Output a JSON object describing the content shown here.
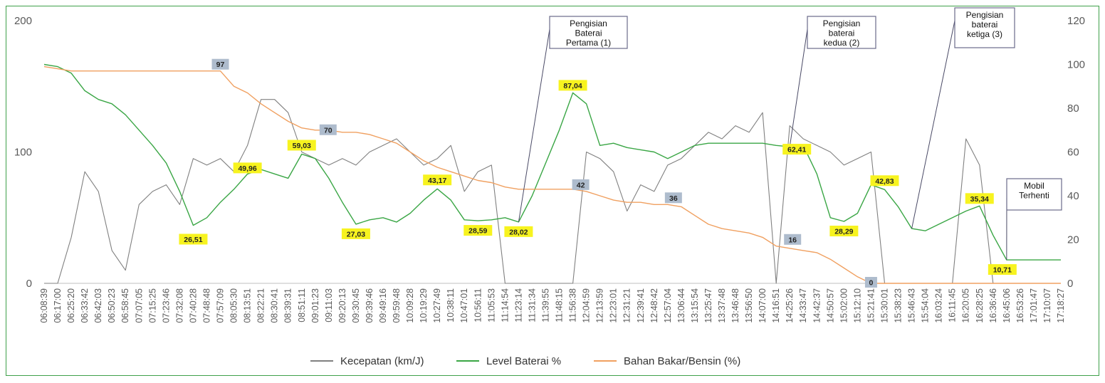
{
  "chart_data": {
    "type": "line",
    "x": [
      "06:08:39",
      "06:17:00",
      "06:25:20",
      "06:33:42",
      "06:42:03",
      "06:50:23",
      "06:58:45",
      "07:07:05",
      "07:15:25",
      "07:23:46",
      "07:32:08",
      "07:40:28",
      "07:48:48",
      "07:57:09",
      "08:05:30",
      "08:13:51",
      "08:22:21",
      "08:30:41",
      "08:39:31",
      "08:51:11",
      "09:01:23",
      "09:11:03",
      "09:20:13",
      "09:30:45",
      "09:39:46",
      "09:49:16",
      "09:59:48",
      "10:09:28",
      "10:19:29",
      "10:27:49",
      "10:38:11",
      "10:47:01",
      "10:56:11",
      "11:05:53",
      "11:14:54",
      "11:23:14",
      "11:31:34",
      "11:39:55",
      "11:48:15",
      "11:56:38",
      "12:04:59",
      "12:13:59",
      "12:23:01",
      "12:31:21",
      "12:39:41",
      "12:48:42",
      "12:57:04",
      "13:06:44",
      "13:15:54",
      "13:25:47",
      "13:37:48",
      "13:46:48",
      "13:56:50",
      "14:07:00",
      "14:16:51",
      "14:25:26",
      "14:33:47",
      "14:42:37",
      "14:50:57",
      "15:02:00",
      "15:12:10",
      "15:21:41",
      "15:30:01",
      "15:38:23",
      "15:46:43",
      "15:54:04",
      "16:03:24",
      "16:11:45",
      "16:20:05",
      "16:28:25",
      "16:36:46",
      "16:45:06",
      "16:53:26",
      "17:01:47",
      "17:10:07",
      "17:18:27"
    ],
    "y_left": {
      "min": 0,
      "max": 200,
      "ticks": [
        "0",
        "100",
        "200"
      ]
    },
    "y_right": {
      "min": 0,
      "max": 120,
      "ticks": [
        "0",
        "20",
        "40",
        "60",
        "80",
        "100",
        "120"
      ]
    },
    "grid": false,
    "legend_position": "bottom",
    "series": [
      {
        "name": "Kecepatan (km/J)",
        "axis": "left",
        "color": "#808080",
        "values": [
          0,
          0,
          35,
          85,
          70,
          25,
          10,
          60,
          70,
          75,
          60,
          95,
          90,
          95,
          85,
          105,
          140,
          140,
          130,
          100,
          95,
          90,
          95,
          90,
          100,
          105,
          110,
          100,
          90,
          95,
          105,
          70,
          85,
          90,
          0,
          0,
          0,
          0,
          0,
          0,
          100,
          95,
          85,
          55,
          75,
          70,
          90,
          95,
          105,
          115,
          110,
          120,
          115,
          130,
          0,
          120,
          110,
          105,
          100,
          90,
          95,
          100,
          0,
          0,
          0,
          0,
          0,
          0,
          110,
          90,
          0,
          0,
          0,
          0,
          0,
          0
        ]
      },
      {
        "name": "Level Baterai %",
        "axis": "right",
        "color": "#3aa645",
        "values": [
          100,
          99,
          96,
          88,
          84,
          82,
          77,
          70,
          63,
          55,
          42,
          26.51,
          30,
          37,
          43,
          49.96,
          52,
          50,
          48,
          59.03,
          57,
          48,
          37,
          27.03,
          29,
          30,
          28,
          32,
          38,
          43.17,
          38,
          29,
          28.59,
          29,
          30,
          28.02,
          40,
          55,
          70,
          87.04,
          82,
          63,
          64,
          62,
          61,
          60,
          57,
          60,
          63,
          64,
          64,
          64,
          64,
          64,
          63,
          62.41,
          63,
          50,
          30,
          28.29,
          32,
          45,
          42.83,
          35,
          25,
          24,
          27,
          30,
          33,
          35.34,
          22,
          10.71,
          10.71,
          10.71,
          10.71,
          10.71
        ]
      },
      {
        "name": "Bahan Bakar/Bensin (%)",
        "axis": "right",
        "color": "#f0a060",
        "values": [
          99,
          98,
          97,
          97,
          97,
          97,
          97,
          97,
          97,
          97,
          97,
          97,
          97,
          97,
          90,
          87,
          82,
          78,
          74,
          71,
          70,
          70,
          69,
          69,
          68,
          66,
          64,
          60,
          56,
          53,
          51,
          49,
          47,
          46,
          44,
          43,
          43,
          43,
          43,
          43,
          42,
          40,
          38,
          37,
          37,
          36,
          36,
          35,
          31,
          27,
          25,
          24,
          23,
          21,
          17,
          16,
          15,
          14,
          11,
          7,
          3,
          0,
          0,
          0,
          0,
          0,
          0,
          0,
          0,
          0,
          0,
          0,
          0,
          0,
          0,
          0
        ]
      }
    ],
    "data_labels": {
      "battery": [
        {
          "text": "26,51",
          "index": 11
        },
        {
          "text": "49,96",
          "index": 15
        },
        {
          "text": "59,03",
          "index": 19
        },
        {
          "text": "27,03",
          "index": 23
        },
        {
          "text": "43,17",
          "index": 29
        },
        {
          "text": "28,59",
          "index": 32
        },
        {
          "text": "28,02",
          "index": 35
        },
        {
          "text": "87,04",
          "index": 39
        },
        {
          "text": "62,41",
          "index": 55
        },
        {
          "text": "28,29",
          "index": 59
        },
        {
          "text": "42,83",
          "index": 62
        },
        {
          "text": "35,34",
          "index": 69
        },
        {
          "text": "10,71",
          "index": 71
        }
      ],
      "fuel": [
        {
          "text": "97",
          "index": 13
        },
        {
          "text": "70",
          "index": 20
        },
        {
          "text": "42",
          "index": 40
        },
        {
          "text": "36",
          "index": 46
        },
        {
          "text": "16",
          "index": 55
        },
        {
          "text": "0",
          "index": 61
        }
      ]
    },
    "annotations": [
      {
        "lines": [
          "Pengisian",
          "Baterai",
          "Pertama (1)"
        ],
        "index": 35
      },
      {
        "lines": [
          "Pengisian",
          "baterai",
          "kedua (2)"
        ],
        "index": 55
      },
      {
        "lines": [
          "Pengisian",
          "baterai",
          "ketiga (3)"
        ],
        "index": 64
      },
      {
        "lines": [
          "Mobil",
          "Terhenti"
        ],
        "index": 71
      }
    ]
  }
}
